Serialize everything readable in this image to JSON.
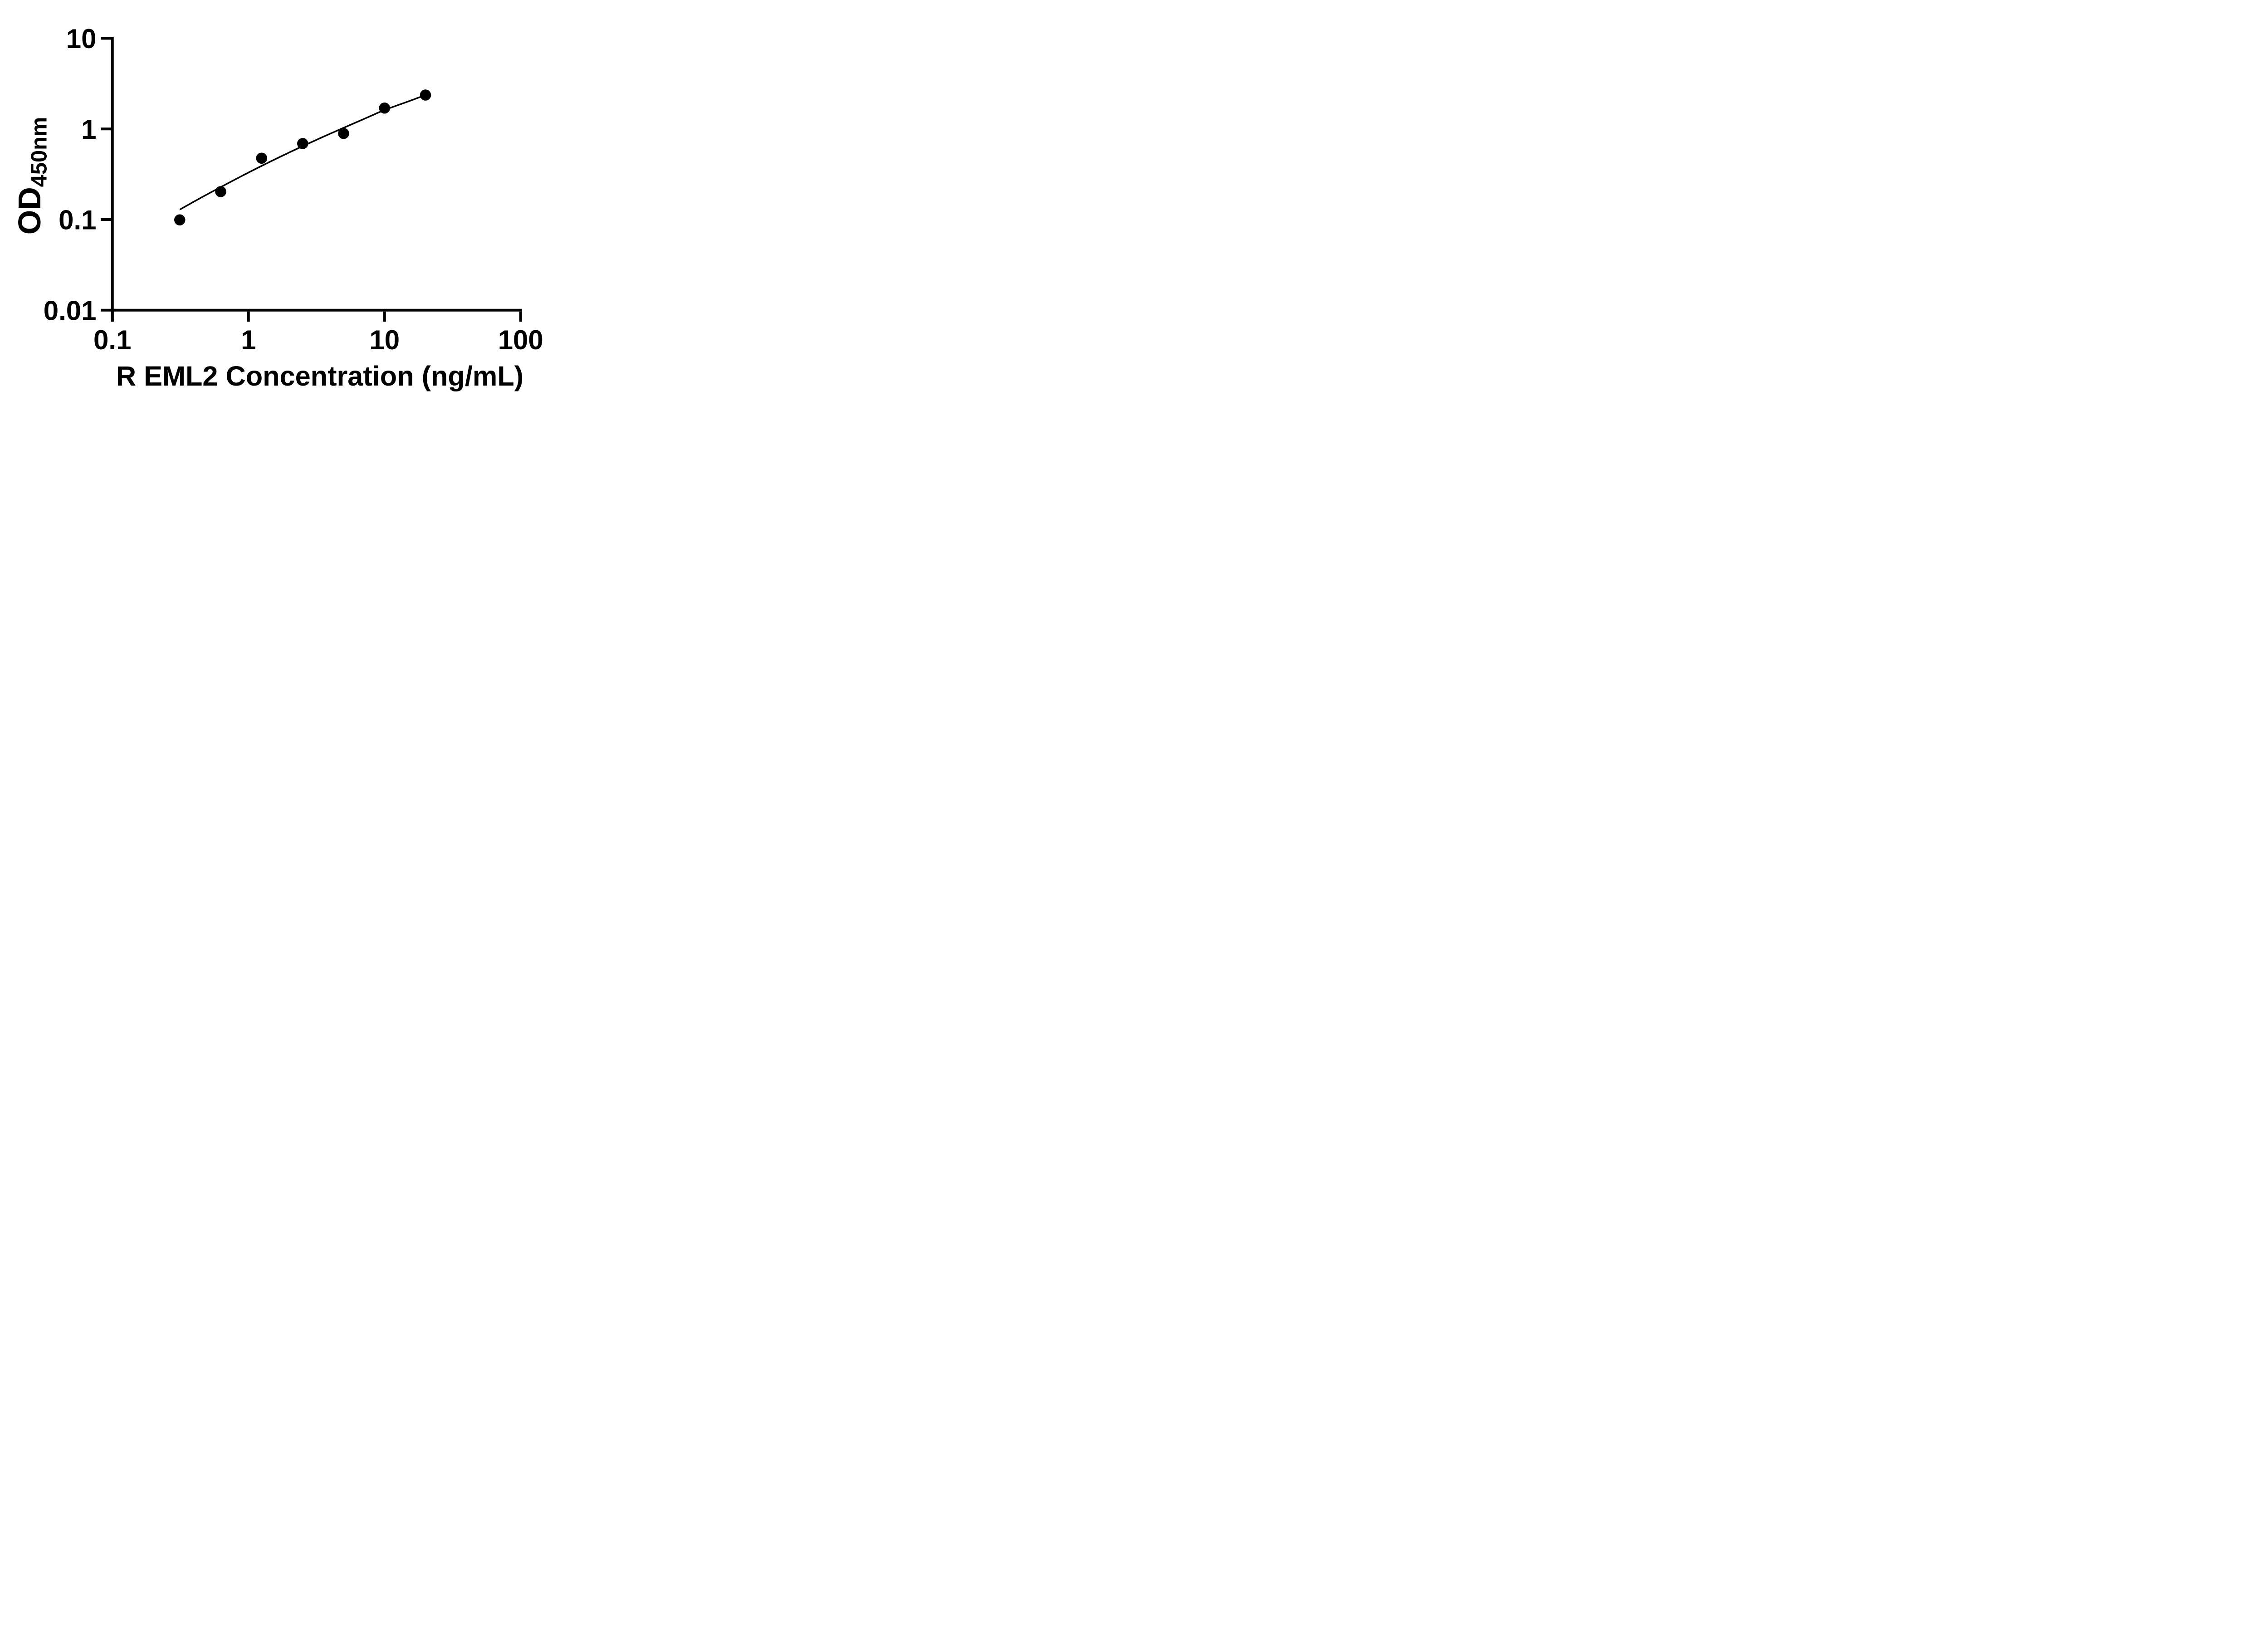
{
  "figure": {
    "background_color": "#ffffff",
    "ink_color": "#000000"
  },
  "chart_data": {
    "type": "scatter",
    "title": "",
    "xlabel": "R EML2 Concentration (ng/mL)",
    "ylabel_main": "OD",
    "ylabel_sub": "450nm",
    "x_scale": "log",
    "y_scale": "log",
    "xlim": [
      0.1,
      100
    ],
    "ylim": [
      0.01,
      10
    ],
    "grid": false,
    "legend": null,
    "x_ticks": [
      {
        "value": 0.1,
        "label": "0.1"
      },
      {
        "value": 1,
        "label": "1"
      },
      {
        "value": 10,
        "label": "10"
      },
      {
        "value": 100,
        "label": "100"
      }
    ],
    "y_ticks": [
      {
        "value": 10,
        "label": "10"
      },
      {
        "value": 1,
        "label": "1"
      },
      {
        "value": 0.1,
        "label": "0.1"
      },
      {
        "value": 0.01,
        "label": "0.01"
      }
    ],
    "series": [
      {
        "name": "standard-points",
        "kind": "scatter",
        "marker": "filled-circle",
        "color": "#000000",
        "points": [
          {
            "x": 0.3125,
            "y": 0.099
          },
          {
            "x": 0.625,
            "y": 0.203
          },
          {
            "x": 1.25,
            "y": 0.475
          },
          {
            "x": 2.5,
            "y": 0.69
          },
          {
            "x": 5,
            "y": 0.89
          },
          {
            "x": 10,
            "y": 1.7
          },
          {
            "x": 20,
            "y": 2.37
          }
        ]
      },
      {
        "name": "fitted-curve",
        "kind": "line",
        "color": "#000000",
        "points": [
          {
            "x": 0.316,
            "y": 0.13
          },
          {
            "x": 0.45,
            "y": 0.175
          },
          {
            "x": 0.625,
            "y": 0.228
          },
          {
            "x": 0.9,
            "y": 0.304
          },
          {
            "x": 1.25,
            "y": 0.391
          },
          {
            "x": 1.8,
            "y": 0.511
          },
          {
            "x": 2.5,
            "y": 0.646
          },
          {
            "x": 3.5,
            "y": 0.813
          },
          {
            "x": 5,
            "y": 1.03
          },
          {
            "x": 7,
            "y": 1.28
          },
          {
            "x": 10,
            "y": 1.62
          },
          {
            "x": 14,
            "y": 1.94
          },
          {
            "x": 20,
            "y": 2.37
          }
        ]
      }
    ]
  }
}
